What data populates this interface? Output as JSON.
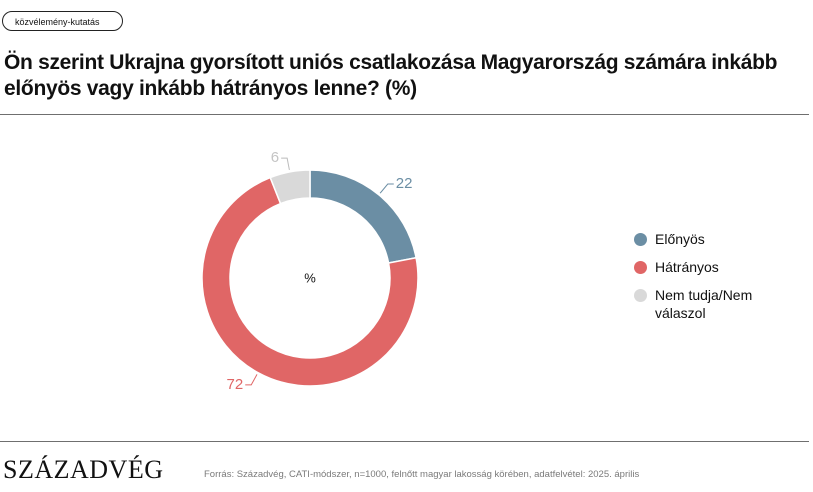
{
  "tag": "közvélemény-kutatás",
  "title": "Ön szerint Ukrajna gyorsított uniós csatlakozása Magyarország számára inkább előnyös vagy inkább hátrányos lenne? (%)",
  "chart_data": {
    "type": "pie",
    "center_label": "%",
    "series": [
      {
        "name": "Előnyös",
        "value": 22,
        "color": "#6b8ea4"
      },
      {
        "name": "Hátrányos",
        "value": 72,
        "color": "#e06666"
      },
      {
        "name": "Nem tudja/Nem válaszol",
        "value": 6,
        "color": "#d9d9d9"
      }
    ],
    "legend_position": "right"
  },
  "brand": "SZÁZADVÉG",
  "source": "Forrás: Századvég, CATI-módszer, n=1000, felnőtt magyar lakosság körében, adatfelvétel: 2025. április"
}
